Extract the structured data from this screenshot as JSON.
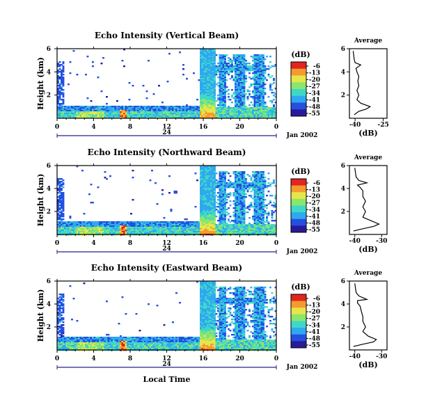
{
  "chart_data": [
    {
      "type": "heatmap",
      "title": "Echo Intensity (Vertical Beam)",
      "ylabel": "Height (km)",
      "xticks": [
        "0",
        "4",
        "8",
        "12",
        "16",
        "20",
        "0"
      ],
      "yticks": [
        "6",
        "4",
        "2"
      ],
      "xlim": [
        0,
        24
      ],
      "ylim": [
        0,
        6
      ],
      "day_label": "24",
      "date_label": "Jan 2002",
      "colorbar": {
        "label": "(dB)",
        "ticks": [
          "-6",
          "-13",
          "-20",
          "-27",
          "-34",
          "-41",
          "-48",
          "-55"
        ]
      },
      "average_profile": {
        "title": "Average",
        "xlabel": "(dB)",
        "xticks": [
          "-40",
          "-25"
        ],
        "yticks": [
          "6",
          "4",
          "2"
        ],
        "xlim": [
          -43,
          -23
        ],
        "ylim": [
          0,
          6
        ],
        "points": [
          [
            -40.5,
            0.3
          ],
          [
            -38,
            0.6
          ],
          [
            -34,
            0.8
          ],
          [
            -32,
            1.0
          ],
          [
            -37,
            1.3
          ],
          [
            -39,
            1.6
          ],
          [
            -38,
            2.0
          ],
          [
            -39,
            2.4
          ],
          [
            -38,
            2.8
          ],
          [
            -38.5,
            3.2
          ],
          [
            -38,
            3.6
          ],
          [
            -39,
            4.0
          ],
          [
            -39.5,
            4.3
          ],
          [
            -37,
            4.6
          ],
          [
            -40,
            4.8
          ],
          [
            -40.5,
            5.1
          ],
          [
            -41,
            5.8
          ]
        ]
      }
    },
    {
      "type": "heatmap",
      "title": "Echo Intensity (Northward Beam)",
      "ylabel": "Height (km)",
      "xticks": [
        "0",
        "4",
        "8",
        "12",
        "16",
        "20",
        "0"
      ],
      "yticks": [
        "6",
        "4",
        "2"
      ],
      "xlim": [
        0,
        24
      ],
      "ylim": [
        0,
        6
      ],
      "day_label": "24",
      "date_label": "Jan 2002",
      "colorbar": {
        "label": "(dB)",
        "ticks": [
          "-6",
          "-13",
          "-20",
          "-27",
          "-34",
          "-41",
          "-48",
          "-55"
        ]
      },
      "average_profile": {
        "title": "Average",
        "xlabel": "(dB)",
        "xticks": [
          "-40",
          "-30"
        ],
        "yticks": [
          "6",
          "4",
          "2"
        ],
        "xlim": [
          -42,
          -28
        ],
        "ylim": [
          0,
          6
        ],
        "points": [
          [
            -40.5,
            0.3
          ],
          [
            -37,
            0.5
          ],
          [
            -33,
            0.7
          ],
          [
            -31,
            0.9
          ],
          [
            -34,
            1.2
          ],
          [
            -37,
            1.5
          ],
          [
            -36,
            2.0
          ],
          [
            -37,
            2.4
          ],
          [
            -36,
            2.9
          ],
          [
            -37,
            3.3
          ],
          [
            -37,
            3.8
          ],
          [
            -38,
            4.1
          ],
          [
            -39,
            4.3
          ],
          [
            -35.5,
            4.5
          ],
          [
            -38.5,
            4.7
          ],
          [
            -39.5,
            5.0
          ],
          [
            -40,
            5.8
          ]
        ]
      }
    },
    {
      "type": "heatmap",
      "title": "Echo Intensity (Eastward Beam)",
      "ylabel": "Height (km)",
      "xlabel": "Local Time",
      "xticks": [
        "0",
        "4",
        "8",
        "12",
        "16",
        "20",
        "0"
      ],
      "yticks": [
        "6",
        "4",
        "2"
      ],
      "xlim": [
        0,
        24
      ],
      "ylim": [
        0,
        6
      ],
      "day_label": "24",
      "date_label": "Jan 2002",
      "colorbar": {
        "label": "(dB)",
        "ticks": [
          "-6",
          "-13",
          "-20",
          "-27",
          "-34",
          "-41",
          "-48",
          "-55"
        ]
      },
      "average_profile": {
        "title": "Average",
        "xlabel": "(dB)",
        "xticks": [
          "-40",
          "-30"
        ],
        "yticks": [
          "6",
          "4",
          "2"
        ],
        "xlim": [
          -42,
          -28
        ],
        "ylim": [
          0,
          6
        ],
        "points": [
          [
            -40.5,
            0.3
          ],
          [
            -37,
            0.5
          ],
          [
            -33,
            0.7
          ],
          [
            -32,
            0.9
          ],
          [
            -35,
            1.2
          ],
          [
            -37,
            1.6
          ],
          [
            -36,
            2.0
          ],
          [
            -37,
            2.5
          ],
          [
            -37,
            2.9
          ],
          [
            -37.5,
            3.3
          ],
          [
            -38,
            3.8
          ],
          [
            -39,
            4.1
          ],
          [
            -39,
            4.3
          ],
          [
            -35.5,
            4.4
          ],
          [
            -38.5,
            4.7
          ],
          [
            -39.5,
            5.0
          ],
          [
            -40,
            5.8
          ]
        ]
      }
    }
  ],
  "colors": {
    "scale": [
      "#2a1a99",
      "#2450e0",
      "#2fa8f0",
      "#3fd8c8",
      "#8ae66c",
      "#e6e64a",
      "#f59a2e",
      "#e0261e"
    ]
  }
}
